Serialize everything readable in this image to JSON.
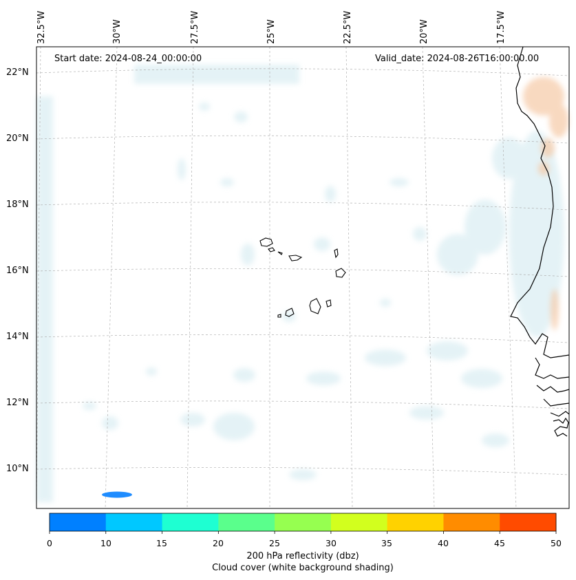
{
  "header": {
    "start_date": "Start date: 2024-08-24_00:00:00",
    "valid_date": "Valid_date: 2024-08-26T16:00:00.00"
  },
  "longitude_labels": [
    "32.5°W",
    "30°W",
    "27.5°W",
    "25°W",
    "22.5°W",
    "20°W",
    "17.5°W"
  ],
  "latitude_labels": [
    "22°N",
    "20°N",
    "18°N",
    "16°N",
    "14°N",
    "12°N",
    "10°N"
  ],
  "colorbar": {
    "ticks": [
      "0",
      "10",
      "15",
      "20",
      "25",
      "30",
      "35",
      "40",
      "45",
      "50"
    ],
    "colors": [
      "#0080ff",
      "#00c8ff",
      "#1effd2",
      "#5aff8c",
      "#96ff50",
      "#d2ff1e",
      "#ffd200",
      "#ff8c00",
      "#ff4b00"
    ],
    "label_line1": "200 hPa reflectivity (dbz)",
    "label_line2": "Cloud cover (white background shading)"
  },
  "colors": {
    "cloud": "#cfe8ef",
    "warm": "#f6c9a6",
    "echo": "#1e8cff",
    "coast": "#000000",
    "grid": "#b0b0b0"
  }
}
